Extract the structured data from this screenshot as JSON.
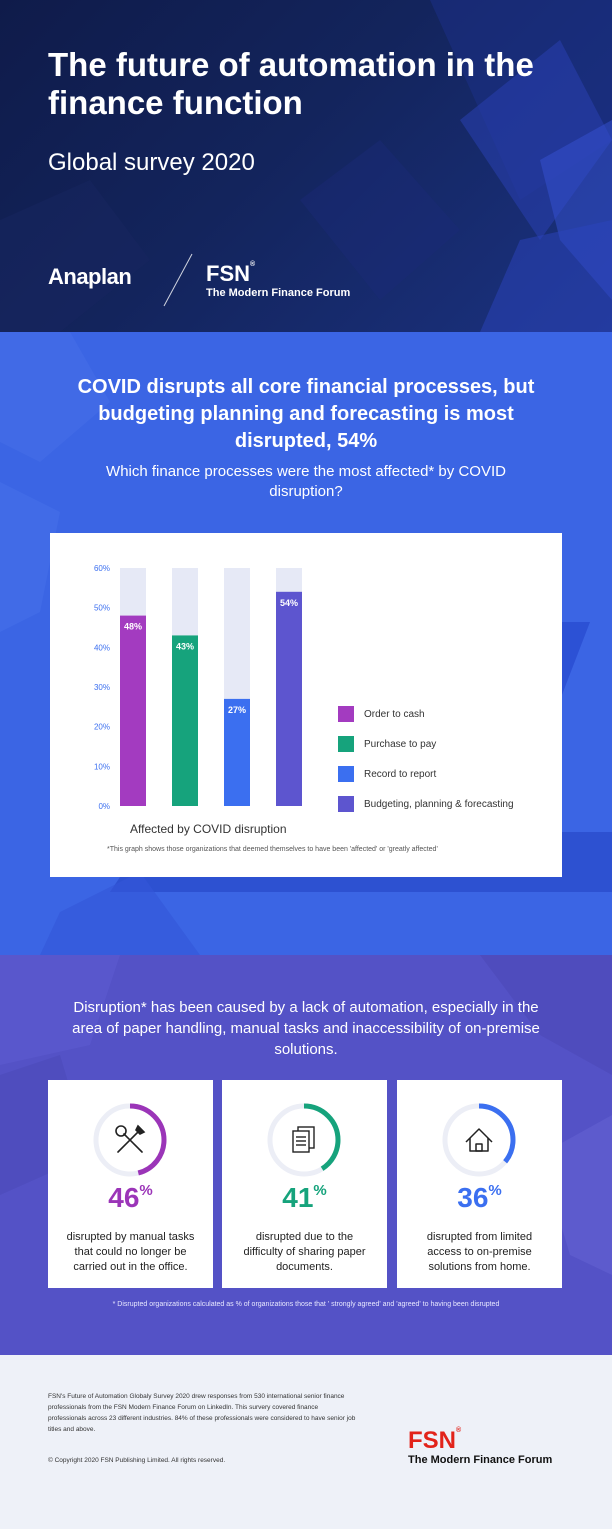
{
  "header": {
    "title": "The future of automation in the finance function",
    "subtitle": "Global survey 2020",
    "logo_anaplan": "Anaplan",
    "logo_fsn": "FSN",
    "logo_fsn_reg": "®",
    "logo_fsn_tagline": "The Modern Finance Forum"
  },
  "covid_section": {
    "headline": "COVID disrupts all core financial processes, but budgeting planning and forecasting is most disrupted, 54%",
    "question": "Which finance processes were the most affected* by COVID disruption?",
    "footnote": "*This graph shows those organizations that deemed themselves to have been 'affected' or 'greatly affected'"
  },
  "chart_data": {
    "type": "bar",
    "categories": [
      "Order to cash",
      "Purchase to pay",
      "Record to report",
      "Budgeting, planning & forecasting"
    ],
    "values": [
      48,
      43,
      27,
      54
    ],
    "data_labels": [
      "48%",
      "43%",
      "27%",
      "54%"
    ],
    "colors": [
      "#a33bc0",
      "#16a37c",
      "#3b6ff0",
      "#5d55cf"
    ],
    "background_bar_color": "#e6e9f6",
    "ylim": [
      0,
      60
    ],
    "yticks": [
      "0%",
      "10%",
      "20%",
      "30%",
      "40%",
      "50%",
      "60%"
    ],
    "xlabel": "Affected by COVID disruption",
    "ylabel": "",
    "legend_position": "right",
    "grid": false
  },
  "disruption_section": {
    "intro": "Disruption* has been caused by a lack of automation, especially in the area of paper handling, manual tasks and inaccessibility of on-premise solutions.",
    "stats": [
      {
        "value": "46",
        "unit": "%",
        "text": "disrupted by manual tasks that could no longer be carried out in the office.",
        "color": "#9b35b8",
        "icon": "tools-icon",
        "fraction": 0.46
      },
      {
        "value": "41",
        "unit": "%",
        "text": "disrupted due to the difficulty of sharing paper documents.",
        "color": "#16a37c",
        "icon": "documents-icon",
        "fraction": 0.41
      },
      {
        "value": "36",
        "unit": "%",
        "text": "disrupted from limited access to on-premise solutions from home.",
        "color": "#3b6ff0",
        "icon": "home-icon",
        "fraction": 0.36
      }
    ],
    "footnote": "* Disrupted organizations calculated as % of organizations those that ' strongly agreed' and 'agreed' to having been disrupted"
  },
  "footer": {
    "description": "FSN's Future of Automation Globaly Survey 2020 drew responses from 530 international senior finance professionals from the FSN Modern Finance Forum on LinkedIn. This survery covered finance professionals across 23 different industries. 84% of these professionals were considered to have senior job titles and above.",
    "copyright": "© Copyright 2020 FSN Publishing Limited. All rights reserved.",
    "logo_fsn": "FSN",
    "logo_fsn_reg": "®",
    "logo_tagline": "The Modern Finance Forum",
    "brand_color": "#e2231a"
  }
}
